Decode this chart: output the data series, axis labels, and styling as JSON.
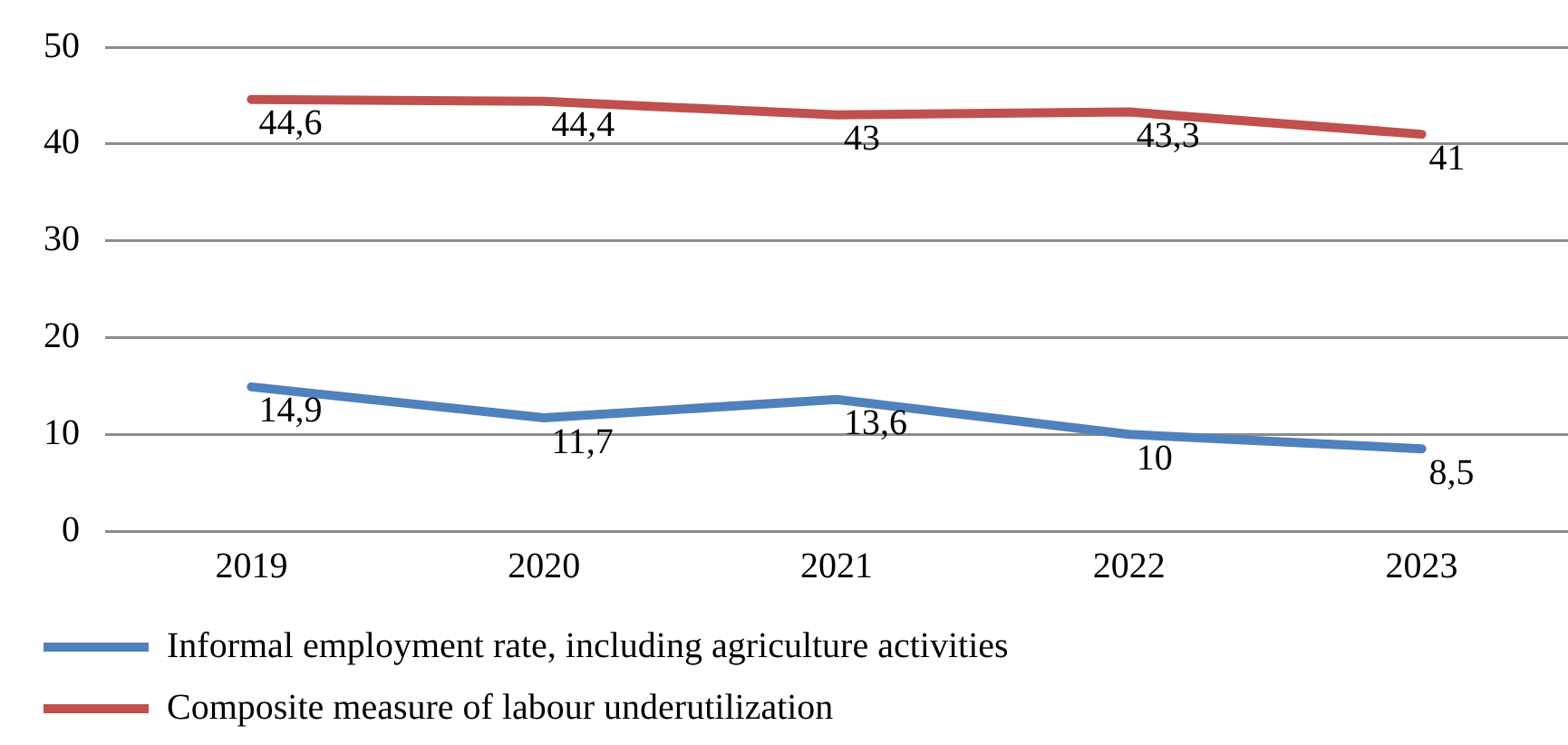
{
  "chart_data": {
    "type": "line",
    "categories": [
      "2019",
      "2020",
      "2021",
      "2022",
      "2023"
    ],
    "series": [
      {
        "name": "Informal employment rate, including agriculture activities",
        "color": "#4f81bd",
        "values": [
          14.9,
          11.7,
          13.6,
          10,
          8.5
        ],
        "value_labels": [
          "14,9",
          "11,7",
          "13,6",
          "10",
          "8,5"
        ]
      },
      {
        "name": "Composite measure of labour underutilization",
        "color": "#c0504d",
        "values": [
          44.6,
          44.4,
          43,
          43.3,
          41
        ],
        "value_labels": [
          "44,6",
          "44,4",
          "43",
          "43,3",
          "41"
        ]
      }
    ],
    "ylim": [
      0,
      50
    ],
    "yticks": [
      0,
      10,
      20,
      30,
      40,
      50
    ],
    "grid": "y",
    "legend": "bottom",
    "marker": "none",
    "line_style": "solid"
  }
}
